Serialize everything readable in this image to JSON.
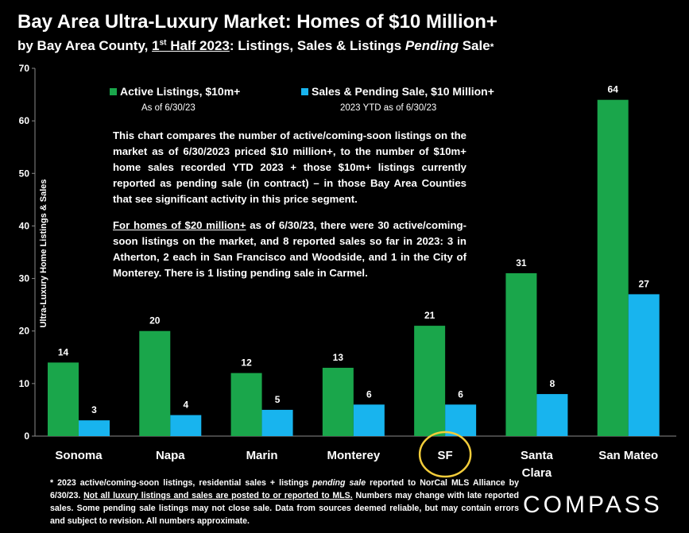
{
  "title": "Bay Area Ultra-Luxury Market: Homes of $10 Million+",
  "subtitle": {
    "part1": "by Bay Area County, ",
    "half_num": "1",
    "half_sup": "st",
    "half_rest": " Half 2023",
    "part2": ":  Listings, Sales & Listings ",
    "pending": "Pending",
    "part3": " Sale",
    "asterisk": "*"
  },
  "legend": [
    {
      "label": "Active Listings, $10m+",
      "note": "As of 6/30/23",
      "color": "#1aa64b"
    },
    {
      "label": "Sales & Pending Sale, $10 Million+",
      "note": "2023 YTD as of 6/30/23",
      "color": "#18b4ee"
    }
  ],
  "annotation": {
    "p1": "This chart compares the number of active/coming-soon listings on the market as of 6/30/2023 priced $10 million+, to the number of $10m+ home sales recorded YTD 2023 + those $10m+ listings currently reported as pending sale (in contract) – in those Bay Area Counties that see significant activity in this price segment.",
    "p2_underlined": "For homes of $20 million+",
    "p2_rest": " as of 6/30/23, there were 30 active/coming-soon listings on the market, and 8 reported sales so far in 2023: 3 in Atherton, 2 each in San Francisco and Woodside, and 1 in the City of Monterey. There is 1 listing pending sale in Carmel."
  },
  "footnote": {
    "a": "* 2023 active/coming-soon listings, residential sales + listings ",
    "b": "pending sale",
    "c": " reported to NorCal MLS Alliance by 6/30/23. ",
    "d": "Not all luxury listings and sales are posted to or reported to MLS.",
    "e": " Numbers may change with late reported sales. Some pending sale listings may not close sale. Data from sources deemed reliable, but may contain errors and subject to revision. All numbers approximate."
  },
  "logo": "COMPASS",
  "colors": {
    "green": "#1aa64b",
    "blue": "#18b4ee",
    "highlight": "#f2cc3a"
  },
  "chart_data": {
    "type": "bar",
    "categories": [
      "Sonoma",
      "Napa",
      "Marin",
      "Monterey",
      "SF",
      "Santa Clara",
      "San Mateo"
    ],
    "series": [
      {
        "name": "Active Listings, $10m+",
        "values": [
          14,
          20,
          12,
          13,
          21,
          31,
          64
        ]
      },
      {
        "name": "Sales & Pending Sale, $10 Million+",
        "values": [
          3,
          4,
          5,
          6,
          6,
          8,
          27
        ]
      }
    ],
    "ylabel": "Ultra-Luxury Home Listings & Sales",
    "ylim": [
      0,
      70
    ],
    "yticks": [
      0,
      10,
      20,
      30,
      40,
      50,
      60,
      70
    ],
    "highlight_category": "SF",
    "grid": false,
    "legend_position": "top"
  }
}
